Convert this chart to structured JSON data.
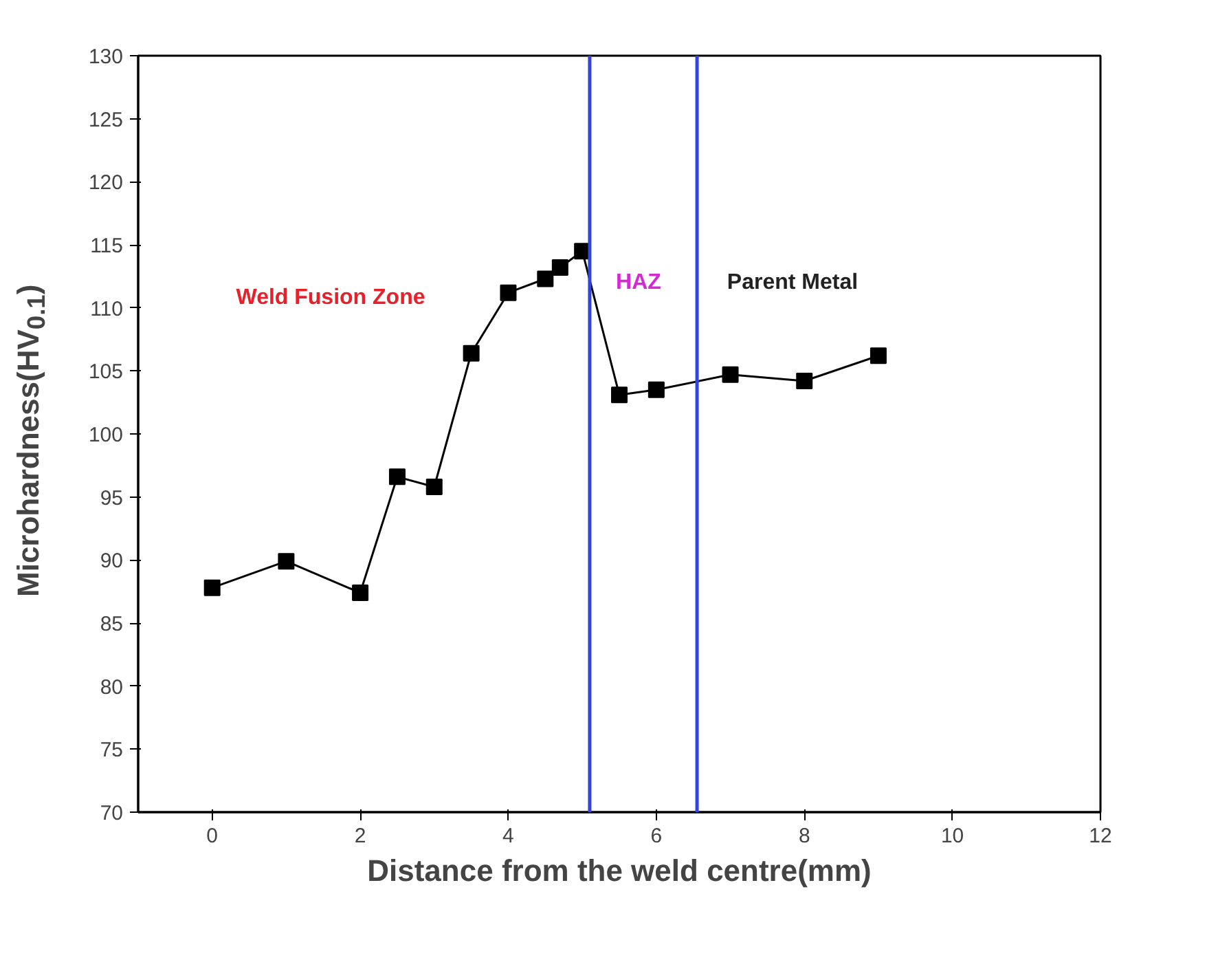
{
  "chart_data": {
    "type": "line",
    "xlabel": "Distance from the weld centre(mm)",
    "ylabel": "Microhardness(HV$_{0.1}$)",
    "x": [
      0,
      1,
      2,
      2.5,
      3,
      3.5,
      4,
      4.5,
      4.7,
      5,
      5.5,
      6,
      7,
      8,
      9
    ],
    "series": [
      {
        "color": "#000000",
        "values": [
          87.8,
          89.9,
          87.4,
          96.6,
          95.8,
          106.4,
          111.2,
          112.3,
          113.2,
          114.5,
          103.1,
          103.5,
          104.7,
          104.2,
          106.2
        ]
      }
    ],
    "marker": "square",
    "line_style": "solid",
    "xlim": [
      -1,
      12
    ],
    "xticks": [
      0,
      2,
      4,
      6,
      8,
      10,
      12
    ],
    "ylim": [
      70,
      130
    ],
    "yticks": [
      70,
      75,
      80,
      85,
      90,
      95,
      100,
      105,
      110,
      115,
      120,
      125,
      130
    ],
    "ref_lines": [
      {
        "axis": "x",
        "value": 5.1,
        "color": "#3344dd"
      },
      {
        "axis": "x",
        "value": 6.55,
        "color": "#3344dd"
      }
    ],
    "annotations": [
      "Weld Fusion Zone",
      "HAZ",
      "Parent Metal"
    ],
    "grid": false
  }
}
